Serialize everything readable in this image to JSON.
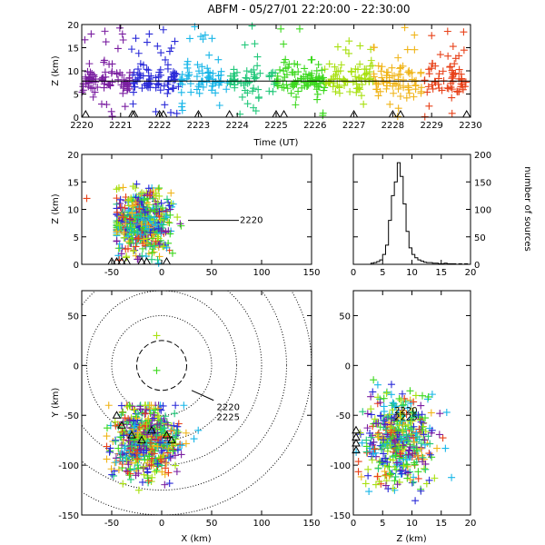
{
  "title": "ABFM - 05/27/01 22:20:00 - 22:30:00",
  "colors": {
    "frame": "#000000",
    "marker": "#000000",
    "range_ring": "#000000",
    "series_rainbow": [
      "#7a1ea0",
      "#2a2ad8",
      "#18b6e8",
      "#22c87a",
      "#3cd81e",
      "#a8e010",
      "#f0b418",
      "#e8421a"
    ]
  },
  "chart_data": [
    {
      "id": "time_height",
      "type": "scatter",
      "marker": "plus",
      "color_by": "time",
      "xlabel": "Time (UT)",
      "ylabel": "Z (km)",
      "xlim": [
        2220,
        2230
      ],
      "ylim": [
        0,
        20
      ],
      "xticks": [
        "2220",
        "2221",
        "2222",
        "2223",
        "2224",
        "2225",
        "2226",
        "2227",
        "2228",
        "2229",
        "2230"
      ],
      "yticks": [
        "0",
        "5",
        "10",
        "15",
        "20"
      ],
      "mean_altitude_km": 7.8,
      "z_mean_km": 8,
      "z_spread_km": 1.6,
      "triangle_markers_x": [
        2220.1,
        2221.3,
        2221.35,
        2222.0,
        2222.1,
        2223.0,
        2223.8,
        2225.0,
        2225.2,
        2227.0,
        2228.0,
        2228.2,
        2229.9
      ],
      "bursts": [
        {
          "t0": 2220.0,
          "t1": 2220.8,
          "n": 60
        },
        {
          "t0": 2220.9,
          "t1": 2221.8,
          "n": 70
        },
        {
          "t0": 2221.9,
          "t1": 2222.6,
          "n": 55
        },
        {
          "t0": 2222.7,
          "t1": 2223.6,
          "n": 55
        },
        {
          "t0": 2223.7,
          "t1": 2224.6,
          "n": 50
        },
        {
          "t0": 2224.8,
          "t1": 2225.5,
          "n": 45
        },
        {
          "t0": 2225.5,
          "t1": 2226.6,
          "n": 80
        },
        {
          "t0": 2226.6,
          "t1": 2227.6,
          "n": 65
        },
        {
          "t0": 2227.6,
          "t1": 2228.6,
          "n": 60
        },
        {
          "t0": 2228.7,
          "t1": 2229.9,
          "n": 70
        }
      ]
    },
    {
      "id": "x_z",
      "type": "scatter",
      "marker": "plus",
      "color_by": "time",
      "xlabel": "",
      "ylabel": "Z (km)",
      "xlim": [
        -80,
        150
      ],
      "ylim": [
        0,
        20
      ],
      "xticks": [
        "-50",
        "0",
        "50",
        "100",
        "150"
      ],
      "yticks": [
        "0",
        "5",
        "10",
        "15",
        "20"
      ],
      "cluster": {
        "x_range": [
          -45,
          25
        ],
        "x_center": -20,
        "x_spread": 14,
        "z_mean": 8,
        "z_spread": 3
      },
      "outliers": [
        {
          "x": -75,
          "z": 12
        },
        {
          "x": 5,
          "z": 3
        }
      ],
      "station": {
        "label": "2220",
        "x": 50,
        "z": 8
      }
    },
    {
      "id": "altitude_histogram",
      "type": "bar",
      "xlabel": "",
      "ylabel": "number of sources",
      "xlim": [
        0,
        20
      ],
      "ylim": [
        0,
        200
      ],
      "xticks": [
        "0",
        "5",
        "10",
        "15",
        "20"
      ],
      "yticks": [
        "0",
        "50",
        "100",
        "150",
        "200"
      ],
      "bin_width_km": 0.5,
      "categories": [
        "3.0",
        "3.5",
        "4.0",
        "4.5",
        "5.0",
        "5.5",
        "6.0",
        "6.5",
        "7.0",
        "7.5",
        "8.0",
        "8.5",
        "9.0",
        "9.5",
        "10.0",
        "10.5",
        "11.0",
        "11.5",
        "12.0",
        "12.5",
        "13.0",
        "13.5",
        "14.0",
        "14.5",
        "15.0",
        "15.5",
        "16.0",
        "16.5",
        "17.0",
        "17.5",
        "18.0",
        "18.5",
        "19.0",
        "19.5"
      ],
      "values": [
        2,
        3,
        5,
        8,
        18,
        35,
        80,
        125,
        150,
        185,
        160,
        110,
        60,
        30,
        18,
        12,
        8,
        6,
        4,
        3,
        3,
        2,
        2,
        1,
        1,
        2,
        1,
        1,
        1,
        0,
        1,
        0,
        1,
        0
      ]
    },
    {
      "id": "plan_view",
      "type": "scatter",
      "marker": "plus",
      "color_by": "time",
      "xlabel": "X (km)",
      "ylabel": "Y (km)",
      "xlim": [
        -80,
        150
      ],
      "ylim": [
        -150,
        75
      ],
      "xticks": [
        "-50",
        "0",
        "50",
        "100",
        "150"
      ],
      "yticks": [
        "-150",
        "-100",
        "-50",
        "0",
        "50"
      ],
      "range_rings_km": [
        25,
        50,
        75,
        100,
        125,
        150
      ],
      "cluster": {
        "x_range": [
          -55,
          40
        ],
        "y_range": [
          -135,
          -40
        ],
        "x_center": -15,
        "y_center": -75,
        "spread": 18
      },
      "outliers": [
        {
          "x": -5,
          "y": 30
        },
        {
          "x": -5,
          "y": -5
        }
      ],
      "triangle_markers": [
        {
          "x": -45,
          "y": -50
        },
        {
          "x": -40,
          "y": -60
        },
        {
          "x": -30,
          "y": -70
        },
        {
          "x": -20,
          "y": -75
        },
        {
          "x": -10,
          "y": -65
        },
        {
          "x": 5,
          "y": -70
        },
        {
          "x": 10,
          "y": -75
        }
      ],
      "station_labels": [
        {
          "text": "2220",
          "x": 55,
          "y": -45
        },
        {
          "text": "2225",
          "x": 55,
          "y": -55
        }
      ]
    },
    {
      "id": "z_y",
      "type": "scatter",
      "marker": "plus",
      "color_by": "time",
      "xlabel": "Z (km)",
      "ylabel": "",
      "xlim": [
        0,
        20
      ],
      "ylim": [
        -150,
        75
      ],
      "xticks": [
        "0",
        "5",
        "10",
        "15",
        "20"
      ],
      "yticks": [
        "-150",
        "-100",
        "-50",
        "0",
        "50"
      ],
      "cluster": {
        "z_mean": 8,
        "z_spread": 3,
        "y_center": -75,
        "y_spread": 22
      },
      "triangle_markers_y": [
        -65,
        -72,
        -78,
        -85
      ],
      "station_labels": [
        {
          "text": "2220",
          "z": 7,
          "y": -48
        },
        {
          "text": "2225",
          "z": 7,
          "y": -55
        }
      ]
    }
  ]
}
